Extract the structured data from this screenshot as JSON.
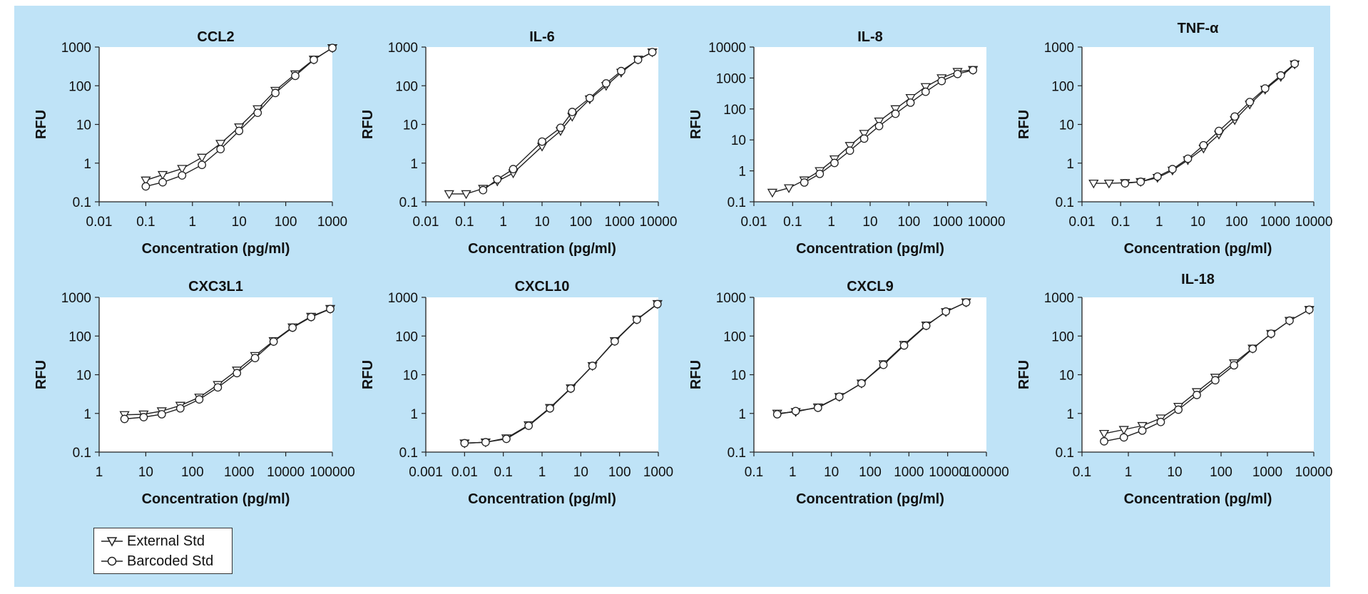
{
  "colors": {
    "background": "#bfe3f7",
    "plot": "#ffffff",
    "line": "#222222"
  },
  "legend": {
    "external_label": "External Std",
    "barcoded_label": "Barcoded Std"
  },
  "chart_data": [
    {
      "type": "line",
      "title": "CCL2",
      "xlabel": "Concentration (pg/ml)",
      "ylabel": "RFU",
      "xscale": "log",
      "yscale": "log",
      "xlim": [
        0.01,
        1000
      ],
      "ylim": [
        0.1,
        1000
      ],
      "xticks": [
        "0.01",
        "0.1",
        "1",
        "10",
        "100",
        "1000"
      ],
      "yticks": [
        "0.1",
        "1",
        "10",
        "100",
        "1000"
      ],
      "series": [
        {
          "name": "External Std",
          "marker": "triangle",
          "x": [
            0.1,
            0.23,
            0.6,
            1.6,
            4.0,
            10,
            25,
            60,
            160,
            400,
            1000
          ],
          "y": [
            0.36,
            0.5,
            0.72,
            1.4,
            3.2,
            8.5,
            25,
            75,
            200,
            480,
            950
          ]
        },
        {
          "name": "Barcoded Std",
          "marker": "circle",
          "x": [
            0.1,
            0.23,
            0.6,
            1.6,
            4.0,
            10,
            25,
            60,
            160,
            400,
            1000
          ],
          "y": [
            0.25,
            0.32,
            0.48,
            0.9,
            2.3,
            6.8,
            20,
            65,
            180,
            470,
            950
          ]
        }
      ]
    },
    {
      "type": "line",
      "title": "IL-6",
      "xlabel": "Concentration (pg/ml)",
      "ylabel": "RFU",
      "xscale": "log",
      "yscale": "log",
      "xlim": [
        0.01,
        10000
      ],
      "ylim": [
        0.1,
        1000
      ],
      "xticks": [
        "0.01",
        "0.1",
        "1",
        "10",
        "100",
        "1000",
        "10000"
      ],
      "yticks": [
        "0.1",
        "1",
        "10",
        "100",
        "1000"
      ],
      "series": [
        {
          "name": "External Std",
          "marker": "triangle",
          "x": [
            0.04,
            0.11,
            0.3,
            0.7,
            1.8,
            10,
            30,
            60,
            170,
            450,
            1100,
            3000,
            7000
          ],
          "y": [
            0.16,
            0.16,
            0.22,
            0.34,
            0.55,
            2.7,
            6.8,
            16,
            45,
            100,
            220,
            480,
            740
          ]
        },
        {
          "name": "Barcoded Std",
          "marker": "circle",
          "x": [
            0.3,
            0.7,
            1.8,
            10,
            30,
            60,
            170,
            450,
            1100,
            3000,
            7000
          ],
          "y": [
            0.2,
            0.38,
            0.7,
            3.6,
            8.2,
            21,
            48,
            115,
            240,
            470,
            740
          ]
        }
      ]
    },
    {
      "type": "line",
      "title": "IL-8",
      "xlabel": "Concentration (pg/ml)",
      "ylabel": "RFU",
      "xscale": "log",
      "yscale": "log",
      "xlim": [
        0.01,
        10000
      ],
      "ylim": [
        0.1,
        10000
      ],
      "xticks": [
        "0.01",
        "0.1",
        "1",
        "10",
        "100",
        "1000",
        "10000"
      ],
      "yticks": [
        "0.1",
        "1",
        "10",
        "100",
        "1000",
        "10000"
      ],
      "series": [
        {
          "name": "External Std",
          "marker": "triangle",
          "x": [
            0.03,
            0.08,
            0.2,
            0.5,
            1.2,
            3,
            7,
            17,
            45,
            110,
            270,
            700,
            1800,
            4500
          ],
          "y": [
            0.2,
            0.28,
            0.5,
            1.0,
            2.4,
            6.5,
            16,
            40,
            100,
            230,
            520,
            1000,
            1600,
            1850
          ]
        },
        {
          "name": "Barcoded Std",
          "marker": "circle",
          "x": [
            0.2,
            0.5,
            1.2,
            3,
            7,
            17,
            45,
            110,
            270,
            700,
            1800,
            4500
          ],
          "y": [
            0.42,
            0.8,
            1.8,
            4.5,
            11,
            28,
            70,
            160,
            360,
            800,
            1350,
            1800
          ]
        }
      ]
    },
    {
      "type": "line",
      "title": "TNF-α",
      "xlabel": "Concentration (pg/ml)",
      "ylabel": "RFU",
      "xscale": "log",
      "yscale": "log",
      "xlim": [
        0.01,
        10000
      ],
      "ylim": [
        0.1,
        1000
      ],
      "xticks": [
        "0.01",
        "0.1",
        "1",
        "10",
        "100",
        "1000",
        "10000"
      ],
      "yticks": [
        "0.1",
        "1",
        "10",
        "100",
        "1000"
      ],
      "series": [
        {
          "name": "External Std",
          "marker": "triangle",
          "x": [
            0.02,
            0.05,
            0.13,
            0.33,
            0.9,
            2.2,
            5.5,
            14,
            35,
            90,
            220,
            550,
            1400,
            3200
          ],
          "y": [
            0.3,
            0.3,
            0.31,
            0.33,
            0.42,
            0.65,
            1.2,
            2.4,
            5.5,
            13,
            33,
            80,
            170,
            360
          ]
        },
        {
          "name": "Barcoded Std",
          "marker": "circle",
          "x": [
            0.13,
            0.33,
            0.9,
            2.2,
            5.5,
            14,
            35,
            90,
            220,
            550,
            1400,
            3200
          ],
          "y": [
            0.3,
            0.33,
            0.45,
            0.7,
            1.3,
            2.9,
            6.8,
            16,
            38,
            85,
            185,
            370
          ]
        }
      ]
    },
    {
      "type": "line",
      "title": "CXC3L1",
      "xlabel": "Concentration (pg/ml)",
      "ylabel": "RFU",
      "xscale": "log",
      "yscale": "log",
      "xlim": [
        1,
        100000
      ],
      "ylim": [
        0.1,
        1000
      ],
      "xticks": [
        "1",
        "10",
        "100",
        "1000",
        "10000",
        "100000"
      ],
      "yticks": [
        "0.1",
        "1",
        "10",
        "100",
        "1000"
      ],
      "series": [
        {
          "name": "External Std",
          "marker": "triangle",
          "x": [
            3.5,
            9,
            22,
            55,
            140,
            350,
            900,
            2200,
            5500,
            14000,
            35000,
            90000
          ],
          "y": [
            0.92,
            0.95,
            1.15,
            1.6,
            2.6,
            5.5,
            13,
            31,
            75,
            170,
            320,
            510
          ]
        },
        {
          "name": "Barcoded Std",
          "marker": "circle",
          "x": [
            3.5,
            9,
            22,
            55,
            140,
            350,
            900,
            2200,
            5500,
            14000,
            35000,
            90000
          ],
          "y": [
            0.72,
            0.8,
            0.95,
            1.35,
            2.3,
            4.7,
            11,
            27,
            72,
            165,
            310,
            500
          ]
        }
      ]
    },
    {
      "type": "line",
      "title": "CXCL10",
      "xlabel": "Concentration (pg/ml)",
      "ylabel": "RFU",
      "xscale": "log",
      "yscale": "log",
      "xlim": [
        0.001,
        1000
      ],
      "ylim": [
        0.1,
        1000
      ],
      "xticks": [
        "0.001",
        "0.01",
        "0.1",
        "1",
        "10",
        "100",
        "1000"
      ],
      "yticks": [
        "0.1",
        "1",
        "10",
        "100",
        "1000"
      ],
      "series": [
        {
          "name": "External Std",
          "marker": "triangle",
          "x": [
            0.01,
            0.035,
            0.12,
            0.45,
            1.6,
            5.5,
            20,
            75,
            280,
            950
          ],
          "y": [
            0.17,
            0.18,
            0.23,
            0.5,
            1.4,
            4.5,
            17,
            75,
            270,
            680
          ]
        },
        {
          "name": "Barcoded Std",
          "marker": "circle",
          "x": [
            0.01,
            0.035,
            0.12,
            0.45,
            1.6,
            5.5,
            20,
            75,
            280,
            950
          ],
          "y": [
            0.17,
            0.18,
            0.22,
            0.48,
            1.35,
            4.4,
            17,
            73,
            265,
            670
          ]
        }
      ]
    },
    {
      "type": "line",
      "title": "CXCL9",
      "xlabel": "Concentration (pg/ml)",
      "ylabel": "RFU",
      "xscale": "log",
      "yscale": "log",
      "xlim": [
        0.1,
        100000
      ],
      "ylim": [
        0.1,
        1000
      ],
      "xticks": [
        "0.1",
        "1",
        "10",
        "100",
        "1000",
        "10000",
        "100000"
      ],
      "yticks": [
        "0.1",
        "1",
        "10",
        "100",
        "1000"
      ],
      "series": [
        {
          "name": "External Std",
          "marker": "triangle",
          "x": [
            0.4,
            1.2,
            4.5,
            16,
            60,
            220,
            750,
            2800,
            9000,
            30000
          ],
          "y": [
            1.0,
            1.1,
            1.45,
            2.7,
            6.0,
            19,
            60,
            190,
            420,
            750
          ]
        },
        {
          "name": "Barcoded Std",
          "marker": "circle",
          "x": [
            0.4,
            1.2,
            4.5,
            16,
            60,
            220,
            750,
            2800,
            9000,
            30000
          ],
          "y": [
            0.95,
            1.15,
            1.4,
            2.7,
            6.0,
            18,
            57,
            185,
            430,
            740
          ]
        }
      ]
    },
    {
      "type": "line",
      "title": "IL-18",
      "xlabel": "Concentration (pg/ml)",
      "ylabel": "RFU",
      "xscale": "log",
      "yscale": "log",
      "xlim": [
        0.1,
        10000
      ],
      "ylim": [
        0.1,
        1000
      ],
      "xticks": [
        "0.1",
        "1",
        "10",
        "100",
        "1000",
        "10000"
      ],
      "yticks": [
        "0.1",
        "1",
        "10",
        "100",
        "1000"
      ],
      "series": [
        {
          "name": "External Std",
          "marker": "triangle",
          "x": [
            0.3,
            0.8,
            2,
            5,
            12,
            30,
            75,
            190,
            480,
            1200,
            3000,
            8000
          ],
          "y": [
            0.3,
            0.38,
            0.48,
            0.75,
            1.5,
            3.6,
            8.5,
            20,
            48,
            115,
            250,
            480
          ]
        },
        {
          "name": "Barcoded Std",
          "marker": "circle",
          "x": [
            0.3,
            0.8,
            2,
            5,
            12,
            30,
            75,
            190,
            480,
            1200,
            3000,
            8000
          ],
          "y": [
            0.19,
            0.24,
            0.36,
            0.6,
            1.25,
            3.0,
            7.2,
            17.5,
            47,
            115,
            250,
            480
          ]
        }
      ]
    }
  ]
}
